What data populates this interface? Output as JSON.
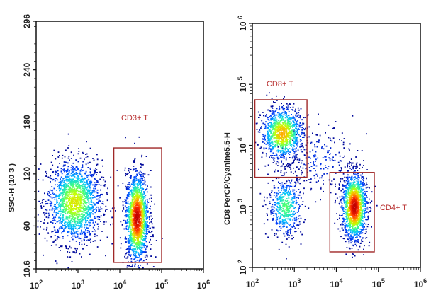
{
  "chart_data": [
    {
      "type": "scatter",
      "subtype": "density dot plot",
      "xlabel": "",
      "ylabel": "SSC-H (10 3 )",
      "x_scale": "log",
      "xlim": [
        100,
        1000000
      ],
      "x_ticks": [
        {
          "exp": "2"
        },
        {
          "exp": "3"
        },
        {
          "exp": "4"
        },
        {
          "exp": "5"
        },
        {
          "exp": "6"
        }
      ],
      "x_tick_values": [
        100,
        1000,
        10000,
        100000,
        1000000
      ],
      "y_scale": "linear",
      "ylim": [
        10.6,
        296
      ],
      "y_ticks": [
        "10.6",
        "60",
        "120",
        "180",
        "240",
        "296"
      ],
      "y_tick_values": [
        10.6,
        60,
        120,
        180,
        240,
        296
      ],
      "colormap": [
        "#00008b",
        "#0040ff",
        "#00c8ff",
        "#40ff80",
        "#c8ff00",
        "#ffb000",
        "#ff3000",
        "#c00000"
      ],
      "populations": [
        {
          "x_center": 800,
          "x_log_sd": 0.33,
          "y_center": 88,
          "y_sd": 24,
          "events": 1700,
          "peak": 0.62
        },
        {
          "x_center": 25000,
          "x_log_sd": 0.14,
          "y_center": 70,
          "y_sd": 26,
          "events": 1600,
          "peak": 1.0
        }
      ],
      "gates": [
        {
          "label": "CD3+ T",
          "x_range": [
            7200,
            100000
          ],
          "y_range": [
            18,
            150
          ],
          "color": "#a02828"
        }
      ]
    },
    {
      "type": "scatter",
      "subtype": "density dot plot",
      "xlabel": "",
      "ylabel": "CD8 PerCP/Cyanine5.5-H",
      "x_scale": "log",
      "xlim": [
        100,
        1000000
      ],
      "x_ticks": [
        {
          "exp": "2"
        },
        {
          "exp": "3"
        },
        {
          "exp": "4"
        },
        {
          "exp": "5"
        },
        {
          "exp": "6"
        }
      ],
      "x_tick_values": [
        100,
        1000,
        10000,
        100000,
        1000000
      ],
      "y_scale": "log",
      "ylim": [
        100,
        1000000
      ],
      "y_ticks": [
        {
          "exp": "2"
        },
        {
          "exp": "3"
        },
        {
          "exp": "4"
        },
        {
          "exp": "5"
        },
        {
          "exp": "6"
        }
      ],
      "y_tick_values": [
        100,
        1000,
        10000,
        100000,
        1000000
      ],
      "colormap": [
        "#00008b",
        "#0040ff",
        "#00c8ff",
        "#40ff80",
        "#c8ff00",
        "#ffb000",
        "#ff3000",
        "#c00000"
      ],
      "populations": [
        {
          "x_center": 500,
          "x_log_sd": 0.25,
          "y_center": 16000,
          "y_log_sd": 0.22,
          "events": 1000,
          "peak": 0.72
        },
        {
          "x_center": 600,
          "x_log_sd": 0.2,
          "y_center": 1000,
          "y_log_sd": 0.25,
          "events": 500,
          "peak": 0.45
        },
        {
          "x_center": 26000,
          "x_log_sd": 0.15,
          "y_center": 1000,
          "y_log_sd": 0.28,
          "events": 1400,
          "peak": 1.0
        },
        {
          "x_center": 4000,
          "x_log_sd": 0.4,
          "y_center": 6000,
          "y_log_sd": 0.3,
          "events": 220,
          "peak": 0.12
        }
      ],
      "gates": [
        {
          "label": "CD8+ T",
          "x_range": [
            115,
            2000
          ],
          "y_range": [
            3000,
            56000
          ],
          "color": "#a02828"
        },
        {
          "label": "CD4+ T",
          "x_range": [
            7000,
            80000
          ],
          "y_range": [
            180,
            3600
          ],
          "color": "#a02828"
        }
      ]
    }
  ]
}
